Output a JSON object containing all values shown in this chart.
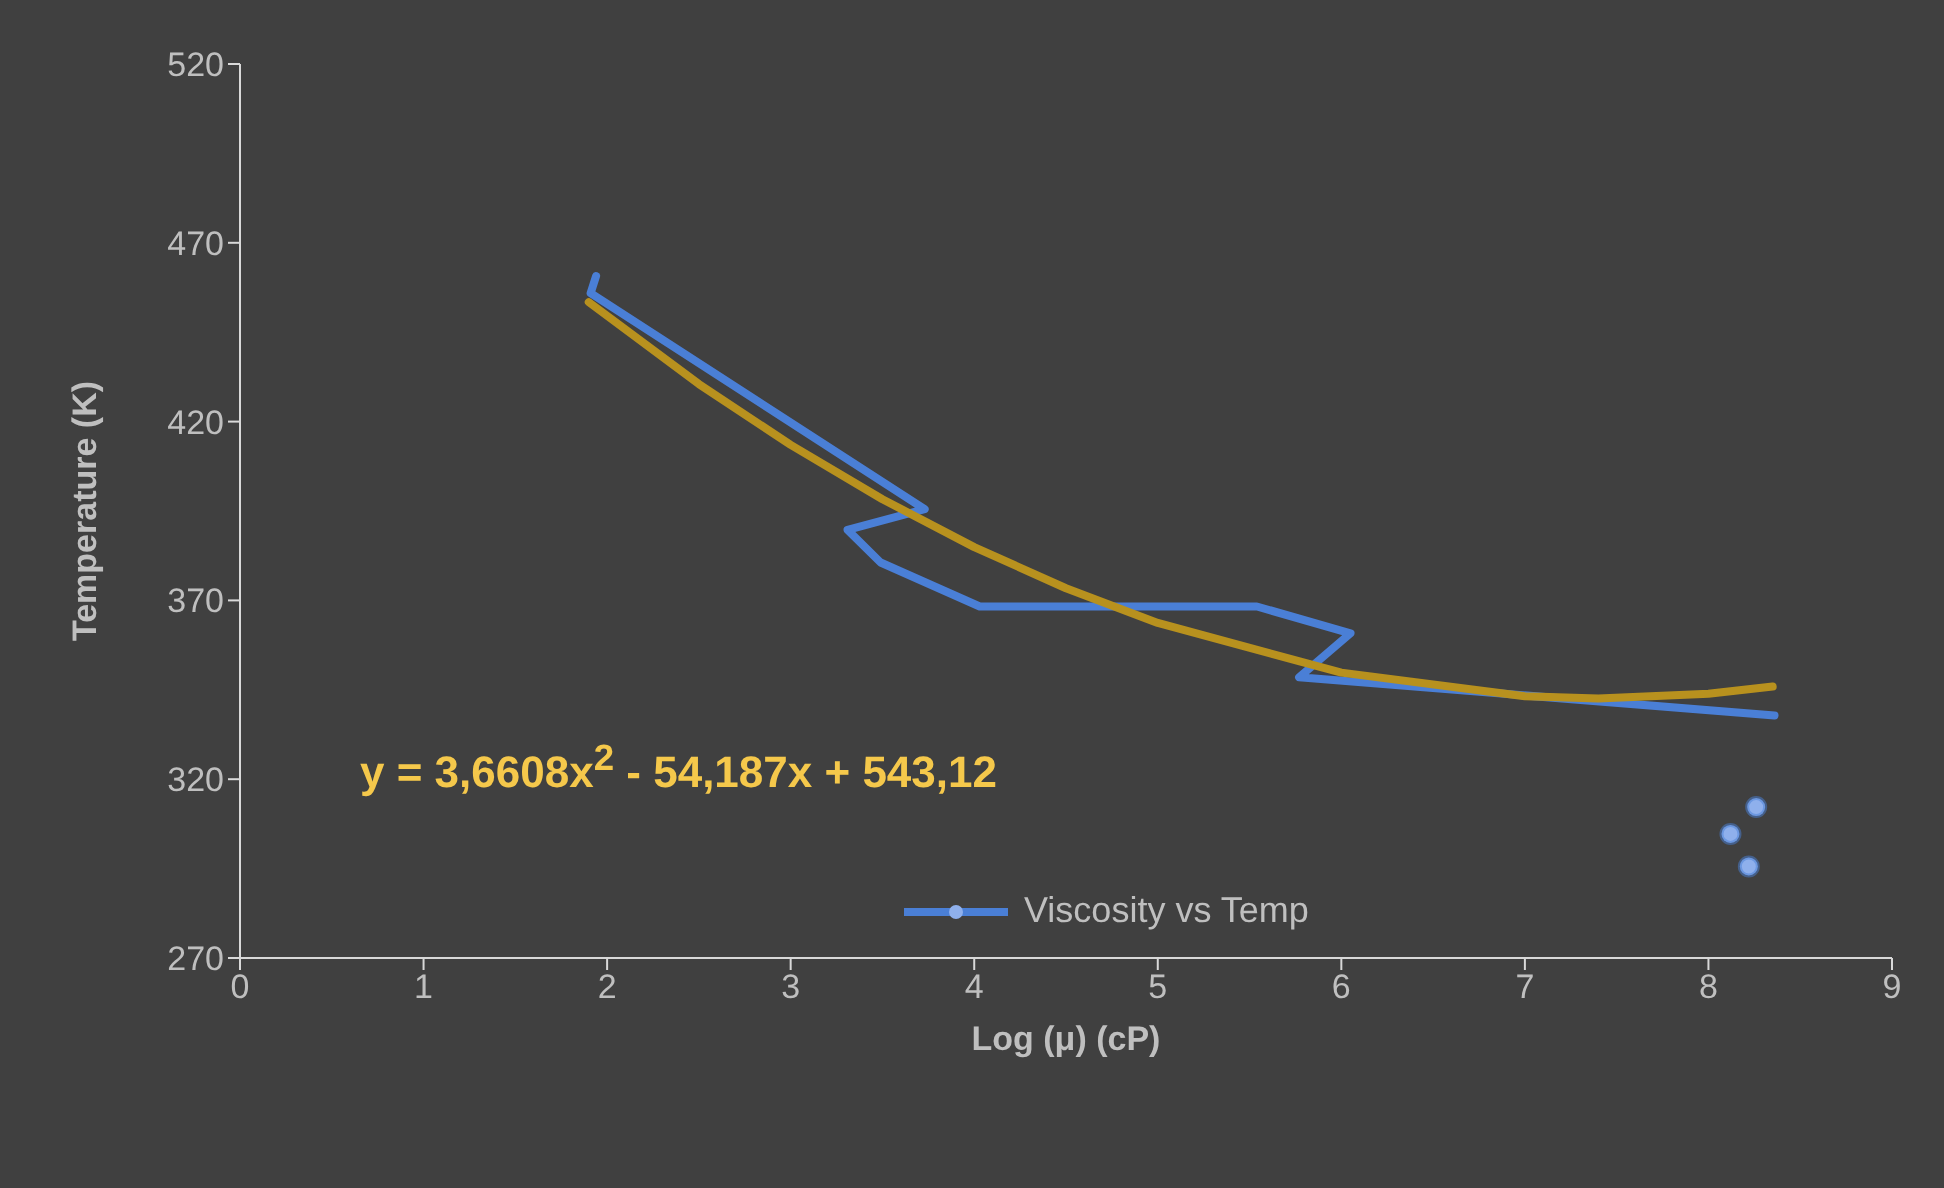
{
  "chart_data": {
    "type": "line",
    "xlabel": "Log (μ) (cP)",
    "ylabel": "Temperature (K)",
    "xlim": [
      0,
      9
    ],
    "xticks": [
      0,
      1,
      2,
      3,
      4,
      5,
      6,
      7,
      8,
      9
    ],
    "ylim": [
      270,
      520
    ],
    "yticks": [
      270,
      320,
      370,
      420,
      470,
      520
    ],
    "grid": false,
    "legend": "bottom",
    "marker": "none",
    "annotations": [
      "y = 3,6608x$^{2}$ - 54,187x + 543,12"
    ],
    "series": [
      {
        "name": "Viscosity vs Temp",
        "type": "line",
        "color": "#4a7fd6",
        "x": [
          1.94,
          1.91,
          3.73,
          3.31,
          3.49,
          4.03,
          5.54,
          6.05,
          5.77,
          8.36
        ],
        "values": [
          460.7,
          455.9,
          395.5,
          389.7,
          380.6,
          368.3,
          368.3,
          360.8,
          348.5,
          337.8
        ]
      },
      {
        "type": "scatter",
        "marker": "circle",
        "color": "#8fb0ec",
        "x": [
          8.26,
          8.12,
          8.22
        ],
        "values": [
          312.2,
          304.7,
          295.6
        ]
      },
      {
        "type": "line",
        "color": "#b8911e",
        "x": [
          1.9,
          2.5,
          3,
          3.5,
          4,
          4.5,
          5,
          6,
          7,
          7.4,
          8,
          8.35
        ],
        "values": [
          453.4,
          430.5,
          413.5,
          398.3,
          384.9,
          373.4,
          363.7,
          349.8,
          343.2,
          342.6,
          343.9,
          345.9
        ]
      }
    ]
  }
}
